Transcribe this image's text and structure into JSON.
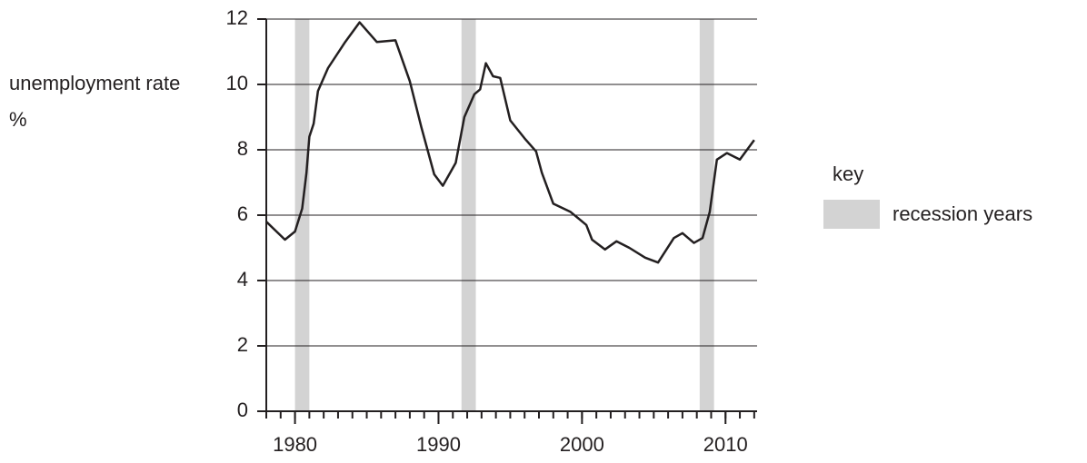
{
  "chart_data": {
    "type": "line",
    "ylabel": "unemployment rate %",
    "x": [
      1978,
      1979.3,
      1980,
      1980.5,
      1980.8,
      1981,
      1981.3,
      1981.6,
      1982.3,
      1983.5,
      1984.5,
      1985.7,
      1987,
      1988,
      1988.8,
      1989.7,
      1990.3,
      1991.2,
      1991.8,
      1992.5,
      1992.9,
      1993.3,
      1993.8,
      1994.3,
      1995,
      1996,
      1996.8,
      1997.2,
      1998,
      1999.2,
      2000.3,
      2000.7,
      2001.6,
      2002.4,
      2003.3,
      2004.4,
      2005.3,
      2006.4,
      2007,
      2007.8,
      2008.4,
      2008.9,
      2009.4,
      2010.1,
      2011,
      2012
    ],
    "values": [
      5.8,
      5.25,
      5.5,
      6.2,
      7.3,
      8.4,
      8.8,
      9.8,
      10.5,
      11.3,
      11.9,
      11.3,
      11.35,
      10.1,
      8.7,
      7.25,
      6.9,
      7.6,
      9.0,
      9.7,
      9.85,
      10.65,
      10.25,
      10.2,
      8.9,
      8.35,
      7.95,
      7.3,
      6.35,
      6.1,
      5.7,
      5.25,
      4.95,
      5.2,
      5.0,
      4.7,
      4.55,
      5.3,
      5.45,
      5.15,
      5.3,
      6.1,
      7.7,
      7.9,
      7.7,
      8.3
    ],
    "color": "#231f20",
    "xlim": [
      1978,
      2012.2
    ],
    "xticks": [
      1980,
      1990,
      2000,
      2010
    ],
    "xminorticks": [
      1978,
      1979,
      1980,
      1981,
      1982,
      1983,
      1984,
      1985,
      1986,
      1987,
      1988,
      1989,
      1990,
      1991,
      1992,
      1993,
      1994,
      1995,
      1996,
      1997,
      1998,
      1999,
      2000,
      2001,
      2002,
      2003,
      2004,
      2005,
      2006,
      2007,
      2008,
      2009,
      2010,
      2011,
      2012
    ],
    "ylim": [
      0,
      12
    ],
    "yticks": [
      0,
      2,
      4,
      6,
      8,
      10,
      12
    ],
    "grid": true,
    "shaded_periods": [
      [
        1980,
        1981
      ],
      [
        1991.6,
        1992.6
      ],
      [
        2008.2,
        2009.2
      ]
    ],
    "shade_color": "#d3d3d3",
    "legend": {
      "title": "key",
      "label": "recession years"
    }
  }
}
